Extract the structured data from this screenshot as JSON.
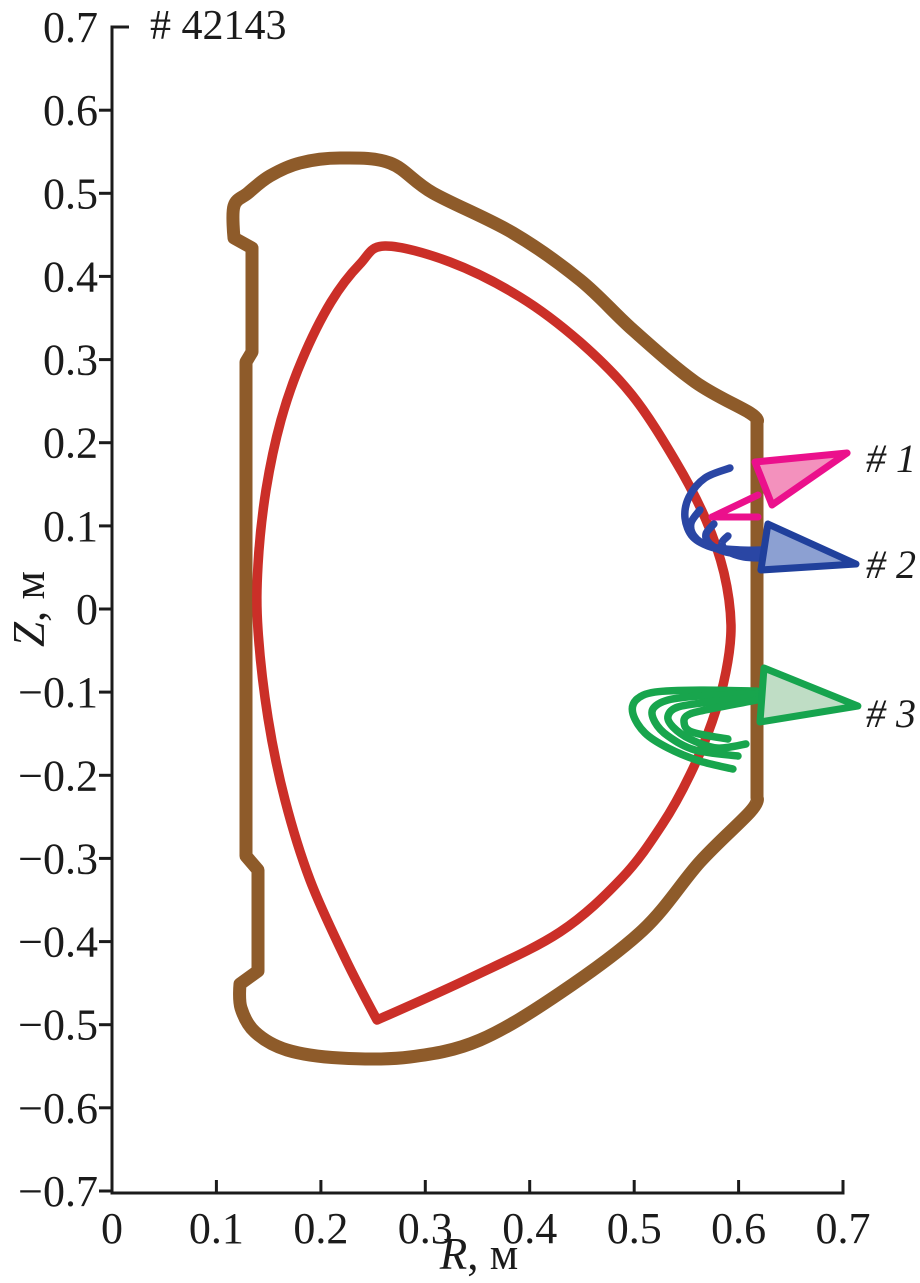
{
  "figure": {
    "shot_label": "# 42143",
    "background": "#ffffff",
    "axis_color": "#1b1b1b"
  },
  "chart_data": {
    "type": "line",
    "title": "# 42143",
    "xlabel_var": "R",
    "xlabel_unit": ", м",
    "ylabel_var": "Z",
    "ylabel_unit": ", м",
    "xlim": [
      0,
      0.7
    ],
    "ylim": [
      -0.7,
      0.7
    ],
    "grid": false,
    "xticks": {
      "values": [
        0,
        0.1,
        0.2,
        0.3,
        0.4,
        0.5,
        0.6,
        0.7
      ],
      "labels": [
        "0",
        "0.1",
        "0.2",
        "0.3",
        "0.4",
        "0.5",
        "0.6",
        "0.7"
      ]
    },
    "yticks": {
      "values": [
        0.7,
        0.6,
        0.5,
        0.4,
        0.3,
        0.2,
        0.1,
        0,
        -0.1,
        -0.2,
        -0.3,
        -0.4,
        -0.5,
        -0.6,
        -0.7
      ],
      "labels": [
        "0.7",
        "0.6",
        "0.5",
        "0.4",
        "0.3",
        "0.2",
        "0.1",
        "0",
        "−0.1",
        "−0.2",
        "−0.3",
        "−0.4",
        "−0.5",
        "−0.6",
        "−0.7"
      ]
    },
    "series": [
      {
        "name": "vacuum-vessel-wall",
        "kind": "path",
        "closed": true,
        "smooth": true,
        "color": "#8E5B2A",
        "width": 13,
        "sharp": [
          12,
          13,
          24,
          25,
          26,
          27,
          28,
          29,
          30,
          31
        ],
        "points": [
          [
            0.1168,
            0.4847
          ],
          [
            0.1302,
            0.5004
          ],
          [
            0.1513,
            0.5209
          ],
          [
            0.18,
            0.5365
          ],
          [
            0.2183,
            0.5425
          ],
          [
            0.2662,
            0.5365
          ],
          [
            0.3074,
            0.5004
          ],
          [
            0.384,
            0.4523
          ],
          [
            0.4482,
            0.3957
          ],
          [
            0.4989,
            0.3356
          ],
          [
            0.5583,
            0.2731
          ],
          [
            0.6109,
            0.2358
          ],
          [
            0.6176,
            0.225
          ],
          [
            0.6176,
            -0.2273
          ],
          [
            0.6109,
            -0.2442
          ],
          [
            0.563,
            -0.3043
          ],
          [
            0.5085,
            -0.3861
          ],
          [
            0.429,
            -0.4619
          ],
          [
            0.3524,
            -0.5184
          ],
          [
            0.2853,
            -0.5389
          ],
          [
            0.2183,
            -0.5401
          ],
          [
            0.1676,
            -0.5304
          ],
          [
            0.1369,
            -0.5088
          ],
          [
            0.1235,
            -0.4799
          ],
          [
            0.1226,
            -0.4511
          ],
          [
            0.1398,
            -0.4354
          ],
          [
            0.1398,
            -0.3139
          ],
          [
            0.1283,
            -0.2971
          ],
          [
            0.1283,
            0.2971
          ],
          [
            0.1341,
            0.3091
          ],
          [
            0.1341,
            0.4342
          ],
          [
            0.1168,
            0.4462
          ]
        ]
      },
      {
        "name": "plasma-boundary",
        "kind": "path",
        "closed": true,
        "smooth": true,
        "color": "#CB2F28",
        "width": 9.5,
        "sharp": [
          16
        ],
        "points": [
          [
            0.2614,
            0.4366
          ],
          [
            0.3237,
            0.4174
          ],
          [
            0.3907,
            0.3753
          ],
          [
            0.4482,
            0.3211
          ],
          [
            0.4979,
            0.2574
          ],
          [
            0.5401,
            0.1768
          ],
          [
            0.5688,
            0.107
          ],
          [
            0.586,
            0.0433
          ],
          [
            0.5927,
            -0.0192
          ],
          [
            0.5879,
            -0.0758
          ],
          [
            0.5745,
            -0.1359
          ],
          [
            0.5534,
            -0.1997
          ],
          [
            0.5266,
            -0.2598
          ],
          [
            0.4883,
            -0.3235
          ],
          [
            0.429,
            -0.3885
          ],
          [
            0.3428,
            -0.4438
          ],
          [
            0.2538,
            -0.4943
          ],
          [
            0.2231,
            -0.4198
          ],
          [
            0.1896,
            -0.3259
          ],
          [
            0.1657,
            -0.2297
          ],
          [
            0.1494,
            -0.1311
          ],
          [
            0.1398,
            -0.0253
          ],
          [
            0.1398,
            0.0529
          ],
          [
            0.1475,
            0.1431
          ],
          [
            0.1618,
            0.2273
          ],
          [
            0.1819,
            0.2995
          ],
          [
            0.2097,
            0.3693
          ],
          [
            0.2375,
            0.415
          ]
        ]
      },
      {
        "name": "npa1-sightlines",
        "kind": "multipath",
        "smooth": true,
        "color": "#EB108C",
        "width": 7,
        "paths": [
          [
            [
              0.5745,
              0.1107
            ],
            [
              0.6186,
              0.1371
            ]
          ],
          [
            [
              0.5745,
              0.1107
            ],
            [
              0.6186,
              0.1107
            ]
          ]
        ]
      },
      {
        "name": "npa2-sightlines",
        "kind": "multipath",
        "smooth": true,
        "color": "#2A46A4",
        "width": 7.5,
        "paths": [
          [
            [
              0.5917,
              0.1696
            ],
            [
              0.5678,
              0.1576
            ],
            [
              0.5525,
              0.1347
            ],
            [
              0.5487,
              0.1095
            ],
            [
              0.5563,
              0.0866
            ],
            [
              0.5745,
              0.0746
            ],
            [
              0.6013,
              0.071
            ],
            [
              0.6224,
              0.071
            ]
          ],
          [
            [
              0.563,
              0.1191
            ],
            [
              0.5544,
              0.1034
            ],
            [
              0.5573,
              0.0878
            ],
            [
              0.5707,
              0.0758
            ],
            [
              0.5965,
              0.0686
            ],
            [
              0.6205,
              0.0674
            ]
          ],
          [
            [
              0.5764,
              0.1022
            ],
            [
              0.5688,
              0.0902
            ],
            [
              0.5726,
              0.0782
            ],
            [
              0.5879,
              0.0686
            ],
            [
              0.6176,
              0.0638
            ]
          ],
          [
            [
              0.5898,
              0.0878
            ],
            [
              0.5841,
              0.0794
            ],
            [
              0.5889,
              0.0698
            ],
            [
              0.6051,
              0.0626
            ],
            [
              0.6224,
              0.0614
            ]
          ]
        ]
      },
      {
        "name": "npa3-sightlines",
        "kind": "multipath",
        "smooth": true,
        "color": "#18A54D",
        "width": 7.5,
        "paths": [
          [
            [
              0.6176,
              -0.0987
            ],
            [
              0.563,
              -0.0975
            ],
            [
              0.5199,
              -0.0999
            ],
            [
              0.5018,
              -0.1095
            ],
            [
              0.4989,
              -0.1263
            ],
            [
              0.5104,
              -0.1492
            ],
            [
              0.5324,
              -0.1672
            ],
            [
              0.563,
              -0.1829
            ],
            [
              0.5946,
              -0.1925
            ]
          ],
          [
            [
              0.6176,
              -0.1022
            ],
            [
              0.563,
              -0.1046
            ],
            [
              0.5324,
              -0.1095
            ],
            [
              0.518,
              -0.1203
            ],
            [
              0.5199,
              -0.1359
            ],
            [
              0.5324,
              -0.1528
            ],
            [
              0.5582,
              -0.1696
            ],
            [
              0.5994,
              -0.1768
            ]
          ],
          [
            [
              0.6176,
              -0.1058
            ],
            [
              0.5726,
              -0.1119
            ],
            [
              0.542,
              -0.1179
            ],
            [
              0.5324,
              -0.1287
            ],
            [
              0.5372,
              -0.1419
            ],
            [
              0.5534,
              -0.1564
            ],
            [
              0.5793,
              -0.1672
            ],
            [
              0.607,
              -0.1624
            ]
          ],
          [
            [
              0.6176,
              -0.1095
            ],
            [
              0.5774,
              -0.1191
            ],
            [
              0.5534,
              -0.1263
            ],
            [
              0.5477,
              -0.1359
            ],
            [
              0.5553,
              -0.1479
            ],
            [
              0.5898,
              -0.1564
            ]
          ]
        ]
      },
      {
        "name": "npa1-detector",
        "kind": "polygon",
        "fill": "#F391BD",
        "color": "#EB108C",
        "width": 7,
        "points": [
          [
            0.7039,
            0.1876
          ],
          [
            0.6157,
            0.1768
          ],
          [
            0.632,
            0.1251
          ]
        ]
      },
      {
        "name": "npa2-detector",
        "kind": "polygon",
        "fill": "#8CA0D2",
        "color": "#20409C",
        "width": 7,
        "points": [
          [
            0.6281,
            0.1022
          ],
          [
            0.7124,
            0.0541
          ],
          [
            0.6214,
            0.0469
          ]
        ]
      },
      {
        "name": "npa3-detector",
        "kind": "polygon",
        "fill": "#BFDDC5",
        "color": "#16A44E",
        "width": 7,
        "points": [
          [
            0.6243,
            -0.071
          ],
          [
            0.7143,
            -0.1167
          ],
          [
            0.6205,
            -0.1359
          ]
        ]
      }
    ],
    "annotations": [
      {
        "name": "detector-1-label",
        "text": "# 1",
        "r": 0.722,
        "z": 0.1648
      },
      {
        "name": "detector-2-label",
        "text": "# 2",
        "r": 0.722,
        "z": 0.0373
      },
      {
        "name": "detector-3-label",
        "text": "# 3",
        "r": 0.722,
        "z": -0.1419
      }
    ]
  }
}
